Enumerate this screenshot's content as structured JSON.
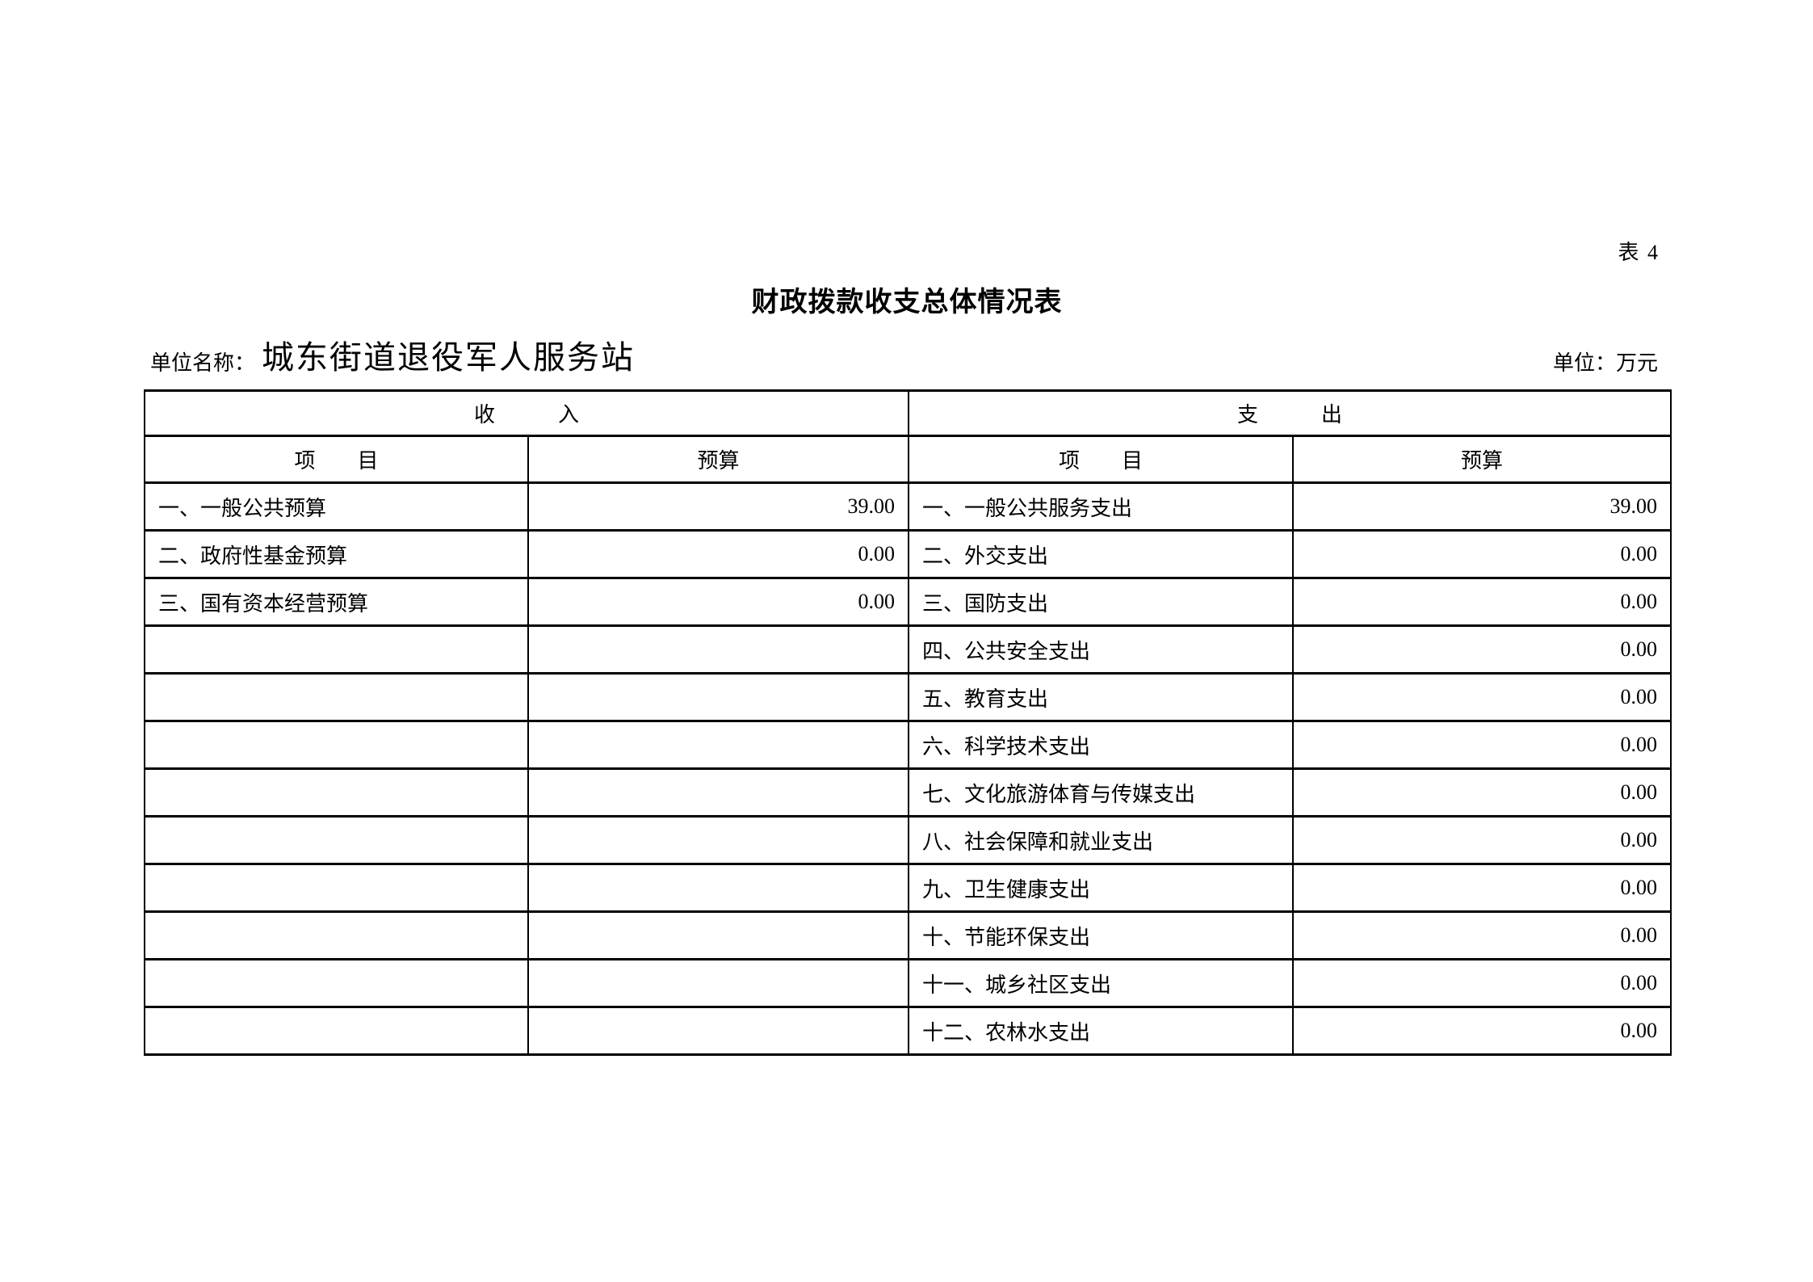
{
  "page": {
    "tag": "表 4",
    "title": "财政拨款收支总体情况表",
    "unit_name_label": "单位名称：",
    "unit_name": "城东街道退役军人服务站",
    "unit_label": "单位：万元"
  },
  "colors": {
    "text": "#000000",
    "background": "#ffffff",
    "table_border": "#000000"
  },
  "table": {
    "income_header": "收　　　入",
    "expense_header": "支　　　出",
    "item_header": "项　　目",
    "budget_header": "预算",
    "rows": [
      {
        "income_item": "一、一般公共预算",
        "income_budget": "39.00",
        "expense_item": "一、一般公共服务支出",
        "expense_budget": "39.00"
      },
      {
        "income_item": "二、政府性基金预算",
        "income_budget": "0.00",
        "expense_item": "二、外交支出",
        "expense_budget": "0.00"
      },
      {
        "income_item": "三、国有资本经营预算",
        "income_budget": "0.00",
        "expense_item": "三、国防支出",
        "expense_budget": "0.00"
      },
      {
        "income_item": "",
        "income_budget": "",
        "expense_item": "四、公共安全支出",
        "expense_budget": "0.00"
      },
      {
        "income_item": "",
        "income_budget": "",
        "expense_item": "五、教育支出",
        "expense_budget": "0.00"
      },
      {
        "income_item": "",
        "income_budget": "",
        "expense_item": "六、科学技术支出",
        "expense_budget": "0.00"
      },
      {
        "income_item": "",
        "income_budget": "",
        "expense_item": "七、文化旅游体育与传媒支出",
        "expense_budget": "0.00"
      },
      {
        "income_item": "",
        "income_budget": "",
        "expense_item": "八、社会保障和就业支出",
        "expense_budget": "0.00"
      },
      {
        "income_item": "",
        "income_budget": "",
        "expense_item": "九、卫生健康支出",
        "expense_budget": "0.00"
      },
      {
        "income_item": "",
        "income_budget": "",
        "expense_item": "十、节能环保支出",
        "expense_budget": "0.00"
      },
      {
        "income_item": "",
        "income_budget": "",
        "expense_item": "十一、城乡社区支出",
        "expense_budget": "0.00"
      },
      {
        "income_item": "",
        "income_budget": "",
        "expense_item": "十二、农林水支出",
        "expense_budget": "0.00"
      }
    ]
  }
}
